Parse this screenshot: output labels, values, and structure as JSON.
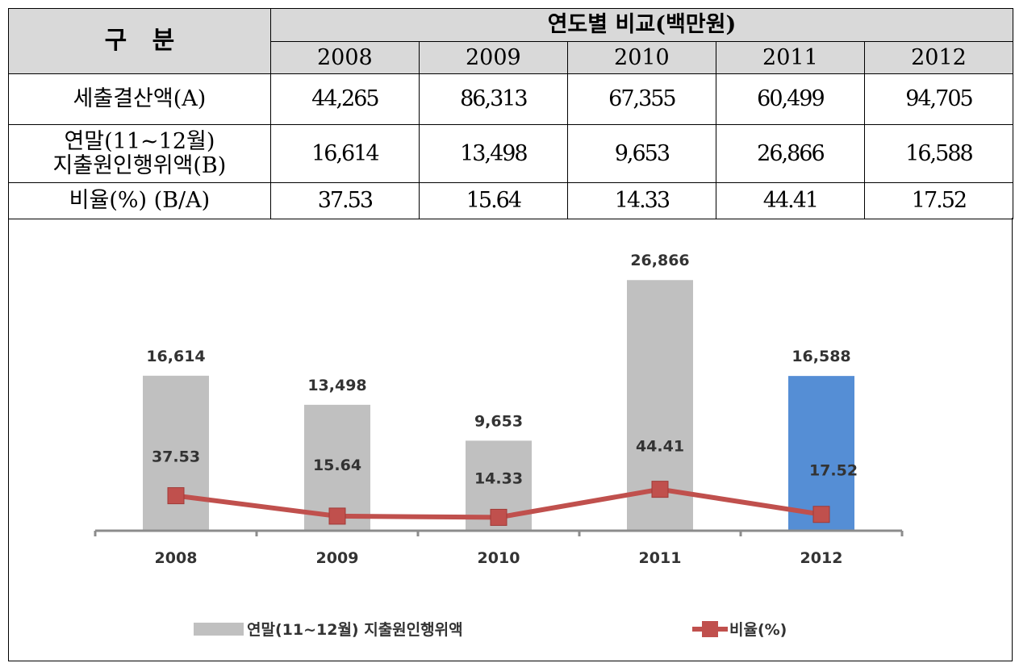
{
  "table": {
    "header": [
      "구   분",
      "연도별 비교(백만원)"
    ],
    "years": [
      "2008",
      "2009",
      "2010",
      "2011",
      "2012"
    ],
    "rows": [
      {
        "label": "세출결산액(A)",
        "cells": [
          "44,265",
          "86,313",
          "67,355",
          "60,499",
          "94,705"
        ]
      },
      {
        "label": "연말(11~12월)\n지출원인행위액(B)",
        "cells": [
          "16,614",
          "13,498",
          "9,653",
          "26,866",
          "16,588"
        ]
      },
      {
        "label": "비율(%) (B/A)",
        "cells": [
          "37.53",
          "15.64",
          "14.33",
          "44.41",
          "17.52"
        ]
      }
    ]
  },
  "chart_data": {
    "type": "bar",
    "categories": [
      "2008",
      "2009",
      "2010",
      "2011",
      "2012"
    ],
    "ylim": [
      0,
      30000
    ],
    "y2lim": [
      0,
      300
    ],
    "series": [
      {
        "name": "연말(11~12월) 지출원인행위액",
        "type": "bar",
        "color": "#c0c0c0",
        "colors": [
          "#c0c0c0",
          "#c0c0c0",
          "#c0c0c0",
          "#c0c0c0",
          "#558ed5"
        ],
        "values": [
          16614,
          13498,
          9653,
          26866,
          16588
        ],
        "value_labels": [
          "16,614",
          "13,498",
          "9,653",
          "26,866",
          "16,588"
        ]
      },
      {
        "name": "비율(%)",
        "type": "line",
        "axis": "y2",
        "color": "#c0504d",
        "values": [
          37.53,
          15.64,
          14.33,
          44.41,
          17.52
        ]
      }
    ]
  }
}
